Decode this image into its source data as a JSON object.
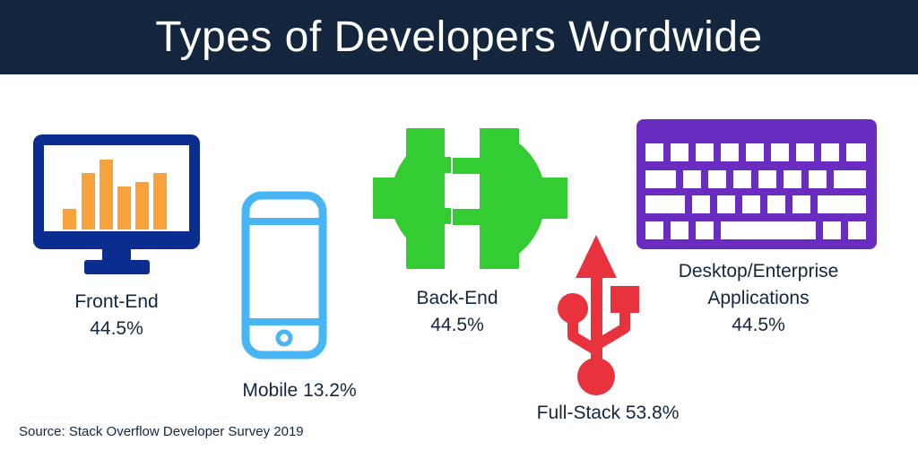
{
  "title": "Types of Developers Wordwide",
  "source": "Source: Stack Overflow Developer Survey 2019",
  "categories": {
    "front_end": {
      "name": "Front-End",
      "value": "44.5%"
    },
    "mobile": {
      "name": "Mobile",
      "value": "13.2%"
    },
    "back_end": {
      "name": "Back-End",
      "value": "44.5%"
    },
    "full_stack": {
      "name": "Full-Stack",
      "value": "53.8%"
    },
    "desktop": {
      "name_line1": "Desktop/Enterprise",
      "name_line2": "Applications",
      "value": "44.5%"
    }
  },
  "icons": {
    "front_end": "monitor-bar-chart-icon",
    "mobile": "smartphone-icon",
    "back_end": "power-plug-icon",
    "full_stack": "usb-icon",
    "desktop": "keyboard-icon"
  },
  "colors": {
    "banner": "#13263d",
    "front_end": "#0a2d8f",
    "front_end_bars": "#f7a23a",
    "mobile": "#48b5f5",
    "back_end": "#33cc33",
    "full_stack": "#e8333f",
    "desktop": "#6a2bc0",
    "text": "#13263d"
  }
}
